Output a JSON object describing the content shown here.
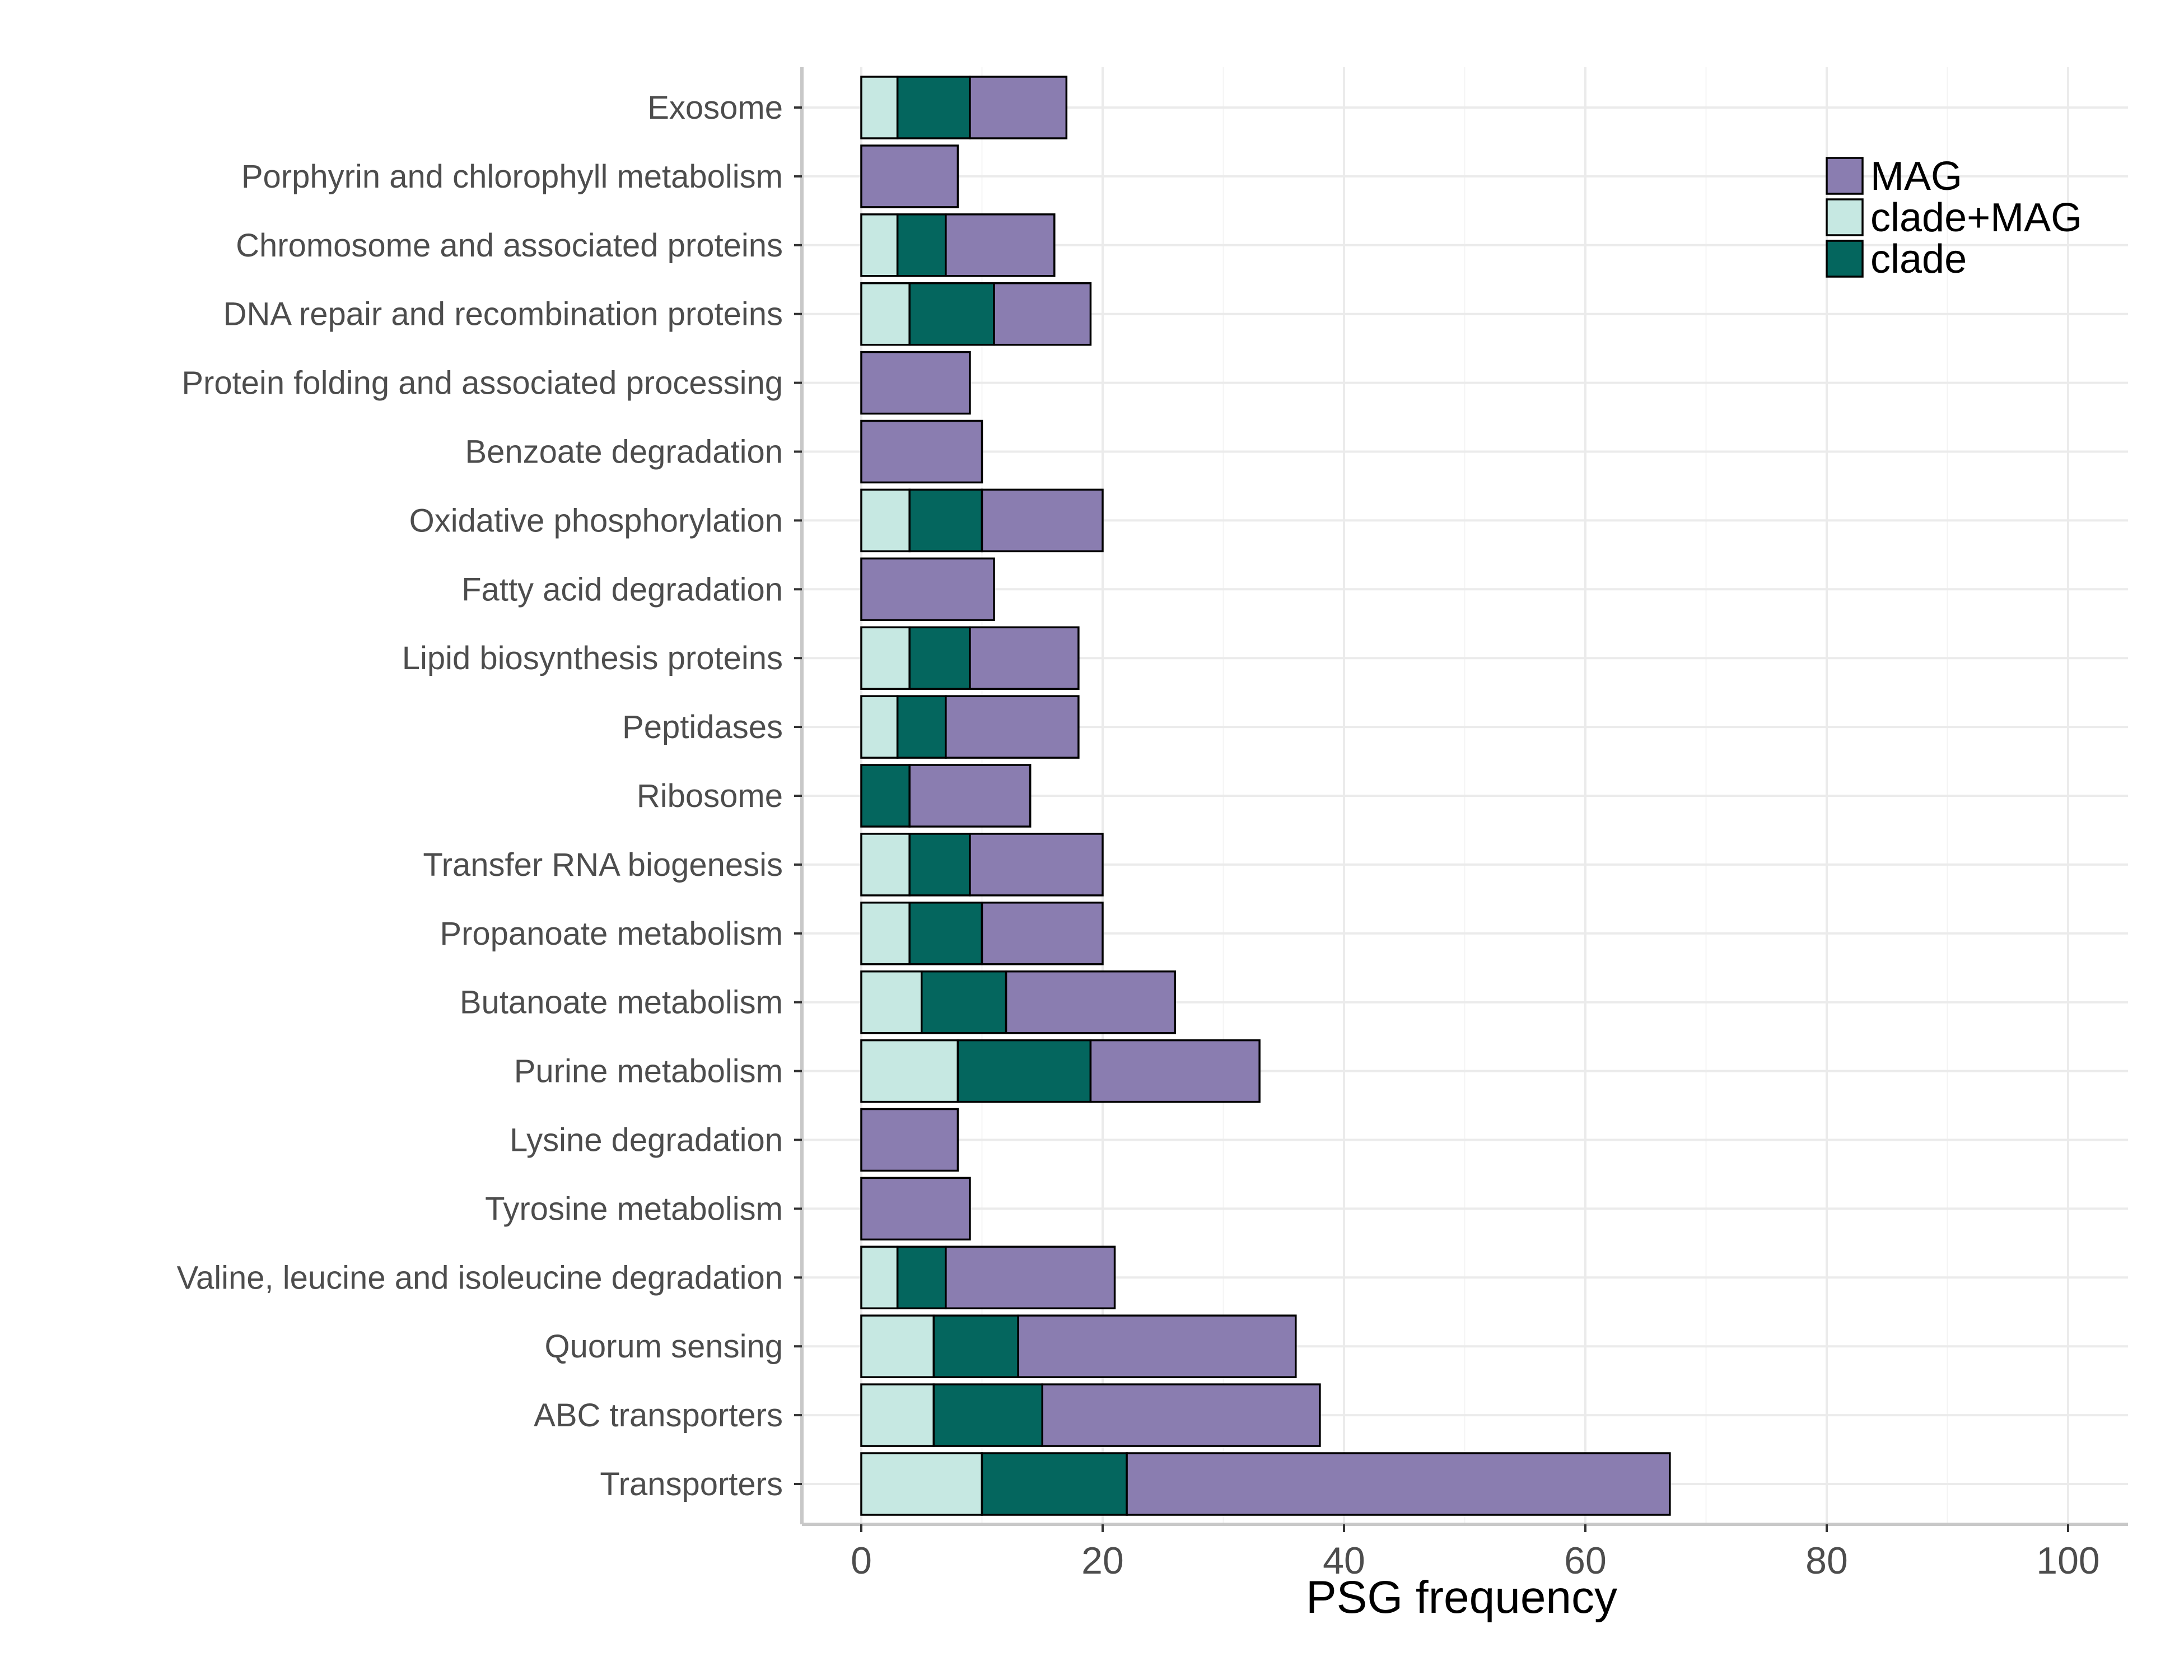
{
  "chart_data": {
    "type": "bar",
    "orientation": "horizontal",
    "stacked": true,
    "title": "",
    "xlabel": "PSG frequency",
    "ylabel": "",
    "xlim": [
      -5,
      105
    ],
    "xticks": [
      0,
      20,
      40,
      60,
      80,
      100
    ],
    "grid": true,
    "legend_position": "top-right",
    "categories": [
      "Exosome",
      "Porphyrin and chlorophyll metabolism",
      "Chromosome and associated proteins",
      "DNA repair and recombination proteins",
      "Protein folding and associated processing",
      "Benzoate degradation",
      "Oxidative phosphorylation",
      "Fatty acid degradation",
      "Lipid biosynthesis proteins",
      "Peptidases",
      "Ribosome",
      "Transfer RNA biogenesis",
      "Propanoate metabolism",
      "Butanoate metabolism",
      "Purine metabolism",
      "Lysine degradation",
      "Tyrosine metabolism",
      "Valine, leucine and isoleucine degradation",
      "Quorum sensing",
      "ABC transporters",
      "Transporters"
    ],
    "series": [
      {
        "name": "clade+MAG",
        "color": "#c6e8e2",
        "values": [
          3,
          0,
          3,
          4,
          0,
          0,
          4,
          0,
          4,
          3,
          0,
          4,
          4,
          5,
          8,
          0,
          0,
          3,
          6,
          6,
          10
        ]
      },
      {
        "name": "clade",
        "color": "#04665e",
        "values": [
          6,
          0,
          4,
          7,
          0,
          0,
          6,
          0,
          5,
          4,
          4,
          5,
          6,
          7,
          11,
          0,
          0,
          4,
          7,
          9,
          12
        ]
      },
      {
        "name": "MAG",
        "color": "#8a7db0",
        "values": [
          8,
          8,
          9,
          8,
          9,
          10,
          10,
          11,
          9,
          11,
          10,
          11,
          10,
          14,
          14,
          8,
          9,
          14,
          23,
          23,
          45
        ]
      }
    ],
    "legend_order": [
      "MAG",
      "clade+MAG",
      "clade"
    ]
  }
}
